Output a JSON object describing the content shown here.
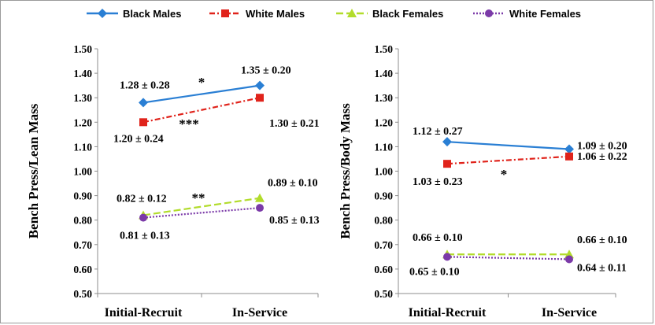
{
  "legend": [
    {
      "name": "Black Males",
      "color": "#2a7fd4",
      "marker": "diamond",
      "dash": "solid"
    },
    {
      "name": "White Males",
      "color": "#e0231b",
      "marker": "square",
      "dash": "dashdot"
    },
    {
      "name": "Black Females",
      "color": "#b2dc2c",
      "marker": "triangle",
      "dash": "dash"
    },
    {
      "name": "White Females",
      "color": "#7b3aa8",
      "marker": "circle",
      "dash": "dot"
    }
  ],
  "chart_data": [
    {
      "type": "line",
      "ylabel": "Bench Press/Lean Mass",
      "categories": [
        "Initial-Recruit",
        "In-Service"
      ],
      "ylim": [
        0.5,
        1.5
      ],
      "yticks": [
        "0.50",
        "0.60",
        "0.70",
        "0.80",
        "0.90",
        "1.00",
        "1.10",
        "1.20",
        "1.30",
        "1.40",
        "1.50"
      ],
      "series": [
        {
          "name": "Black Males",
          "values": [
            1.28,
            1.35
          ],
          "labels": [
            "1.28 ± 0.28",
            "1.35 ± 0.20"
          ]
        },
        {
          "name": "White Males",
          "values": [
            1.2,
            1.3
          ],
          "labels": [
            "1.20 ± 0.24",
            "1.30 ± 0.21"
          ]
        },
        {
          "name": "Black Females",
          "values": [
            0.82,
            0.89
          ],
          "labels": [
            "0.82 ± 0.12",
            "0.89 ± 0.10"
          ]
        },
        {
          "name": "White Females",
          "values": [
            0.81,
            0.85
          ],
          "labels": [
            "0.81 ± 0.13",
            "0.85 ± 0.13"
          ]
        }
      ],
      "significance": [
        {
          "series": "Black Males",
          "text": "*"
        },
        {
          "series": "White Males",
          "text": "***"
        },
        {
          "series": "Black Females",
          "text": "**"
        }
      ]
    },
    {
      "type": "line",
      "ylabel": "Bench Press/Body Mass",
      "categories": [
        "Initial-Recruit",
        "In-Service"
      ],
      "ylim": [
        0.5,
        1.5
      ],
      "yticks": [
        "0.50",
        "0.60",
        "0.70",
        "0.80",
        "0.90",
        "1.00",
        "1.10",
        "1.20",
        "1.30",
        "1.40",
        "1.50"
      ],
      "series": [
        {
          "name": "Black Males",
          "values": [
            1.12,
            1.09
          ],
          "labels": [
            "1.12 ± 0.27",
            "1.09 ± 0.20"
          ]
        },
        {
          "name": "White Males",
          "values": [
            1.03,
            1.06
          ],
          "labels": [
            "1.03 ± 0.23",
            "1.06 ± 0.22"
          ]
        },
        {
          "name": "Black Females",
          "values": [
            0.66,
            0.66
          ],
          "labels": [
            "0.66 ± 0.10",
            "0.66 ± 0.10"
          ]
        },
        {
          "name": "White Females",
          "values": [
            0.65,
            0.64
          ],
          "labels": [
            "0.65 ± 0.10",
            "0.64 ± 0.11"
          ]
        }
      ],
      "significance": [
        {
          "series": "White Males",
          "text": "*"
        }
      ]
    }
  ]
}
